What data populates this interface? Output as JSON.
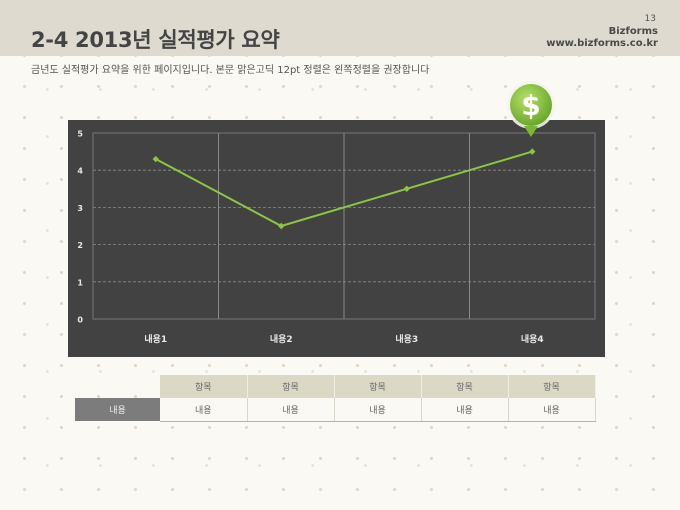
{
  "header": {
    "title": "2-4 2013년 실적평가 요약",
    "page_number": "13",
    "brand_name": "Bizforms",
    "brand_url": "www.bizforms.co.kr"
  },
  "description": "금년도 실적평가 요약을 위한 페이지입니다. 본문 맑은고딕 12pt 정렬은 왼쪽정렬을 권장합니다",
  "badge": {
    "symbol": "$",
    "icon": "dollar-icon",
    "color": "#8cc63f"
  },
  "colors": {
    "panel": "#424242",
    "line": "#8dc63f",
    "header_band": "#dedad0"
  },
  "chart_data": {
    "type": "line",
    "categories": [
      "내용1",
      "내용2",
      "내용3",
      "내용4"
    ],
    "values": [
      4.3,
      2.5,
      3.5,
      4.5
    ],
    "yticks": [
      "0",
      "1",
      "2",
      "3",
      "4",
      "5"
    ],
    "ylim": [
      0,
      5
    ],
    "title": "",
    "xlabel": "",
    "ylabel": "",
    "grid": true
  },
  "table": {
    "headers": [
      "항목",
      "항목",
      "항목",
      "항목",
      "항목"
    ],
    "rows": [
      {
        "label": "내용",
        "cells": [
          "내용",
          "내용",
          "내용",
          "내용",
          "내용"
        ]
      }
    ]
  }
}
